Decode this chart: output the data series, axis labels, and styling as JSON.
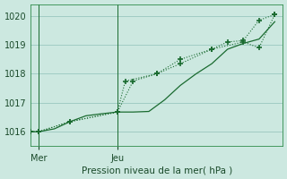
{
  "xlabel": "Pression niveau de la mer( hPa )",
  "bg_color": "#cce8e0",
  "grid_color": "#a0ccc4",
  "line_color": "#1a6b30",
  "ylim": [
    1015.5,
    1020.4
  ],
  "yticks": [
    1016,
    1017,
    1018,
    1019,
    1020
  ],
  "xlim": [
    0,
    16
  ],
  "day_labels": [
    "Mer",
    "Jeu"
  ],
  "day_positions": [
    0.5,
    5.5
  ],
  "vline_positions": [
    0.5,
    5.5
  ],
  "line1_x": [
    0,
    0.5,
    1.5,
    2.5,
    3.5,
    4.5,
    5.5,
    6.5,
    7.5,
    8.5,
    9.5,
    10.5,
    11.5,
    12.5,
    13.5,
    14.5,
    15.5
  ],
  "line1_y": [
    1016.0,
    1016.0,
    1016.1,
    1016.35,
    1016.55,
    1016.62,
    1016.68,
    1016.68,
    1016.7,
    1017.1,
    1017.6,
    1018.0,
    1018.35,
    1018.85,
    1019.05,
    1019.2,
    1019.8
  ],
  "line2_x": [
    0,
    0.5,
    2.5,
    5.5,
    6.5,
    8.0,
    9.5,
    11.5,
    12.5,
    13.5,
    14.5,
    15.5
  ],
  "line2_y": [
    1016.0,
    1016.0,
    1016.35,
    1016.68,
    1017.75,
    1018.0,
    1018.35,
    1018.85,
    1019.1,
    1019.15,
    1019.85,
    1020.05
  ],
  "line3_x": [
    0,
    0.5,
    2.5,
    5.5,
    6.0,
    8.0,
    9.5,
    11.5,
    13.5,
    14.5,
    15.5
  ],
  "line3_y": [
    1016.0,
    1016.0,
    1016.35,
    1016.68,
    1017.75,
    1018.0,
    1018.5,
    1018.85,
    1019.1,
    1018.9,
    1020.05
  ]
}
